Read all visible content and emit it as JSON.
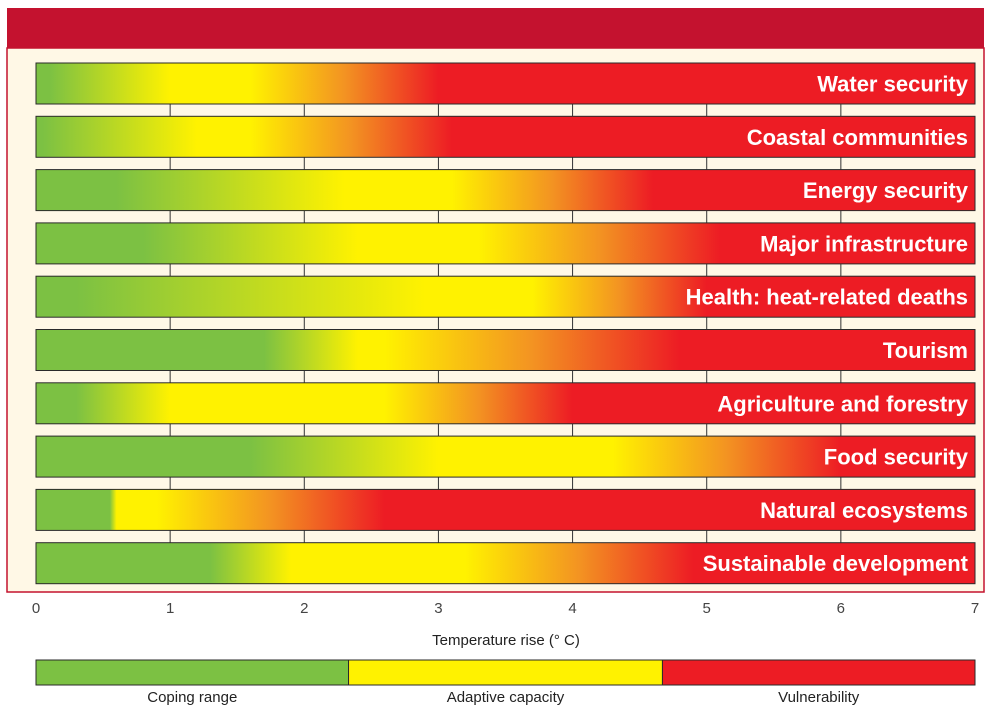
{
  "colors": {
    "header": "#c4122f",
    "frame_border": "#c4122f",
    "panel": "#fff8e6",
    "coping": "#7cc143",
    "adaptive": "#fff200",
    "vulnerability": "#ed1c24",
    "orange": "#f39322"
  },
  "chart_data": {
    "type": "bar",
    "orientation": "horizontal",
    "xlabel": "Temperature rise (° C)",
    "xlim": [
      0,
      7
    ],
    "xticks": [
      "0",
      "1",
      "2",
      "3",
      "4",
      "5",
      "6",
      "7"
    ],
    "grid": true,
    "legend_position": "bottom",
    "zones": [
      "Coping range",
      "Adaptive capacity",
      "Vulnerability"
    ],
    "legend": [
      {
        "label": "Coping range",
        "from": 0,
        "to": 2.33,
        "color": "#7cc143"
      },
      {
        "label": "Adaptive capacity",
        "from": 2.33,
        "to": 4.67,
        "color": "#fff200"
      },
      {
        "label": "Vulnerability",
        "from": 4.67,
        "to": 7,
        "color": "#ed1c24"
      }
    ],
    "rows": [
      {
        "label": "Water security",
        "green_end": 0.1,
        "yellow_start": 1.0,
        "yellow_end": 1.6,
        "red_start": 3.0
      },
      {
        "label": "Coastal communities",
        "green_end": 0.05,
        "yellow_start": 1.2,
        "yellow_end": 1.6,
        "red_start": 3.1
      },
      {
        "label": "Energy security",
        "green_end": 0.6,
        "yellow_start": 2.3,
        "yellow_end": 3.1,
        "red_start": 4.6
      },
      {
        "label": "Major infrastructure",
        "green_end": 0.8,
        "yellow_start": 2.4,
        "yellow_end": 3.3,
        "red_start": 5.1
      },
      {
        "label": "Health: heat-related deaths",
        "green_end": 0.3,
        "yellow_start": 2.9,
        "yellow_end": 3.7,
        "red_start": 5.0
      },
      {
        "label": "Tourism",
        "green_end": 1.7,
        "yellow_start": 2.4,
        "yellow_end": 2.6,
        "red_start": 4.8
      },
      {
        "label": "Agriculture and forestry",
        "green_end": 0.3,
        "yellow_start": 1.0,
        "yellow_end": 2.6,
        "red_start": 4.0
      },
      {
        "label": "Food security",
        "green_end": 1.6,
        "yellow_start": 3.0,
        "yellow_end": 4.3,
        "red_start": 6.0
      },
      {
        "label": "Natural ecosystems",
        "green_end": 0.55,
        "yellow_start": 0.6,
        "yellow_end": 0.9,
        "red_start": 2.6
      },
      {
        "label": "Sustainable development",
        "green_end": 1.3,
        "yellow_start": 1.9,
        "yellow_end": 3.2,
        "red_start": 4.9
      }
    ]
  }
}
